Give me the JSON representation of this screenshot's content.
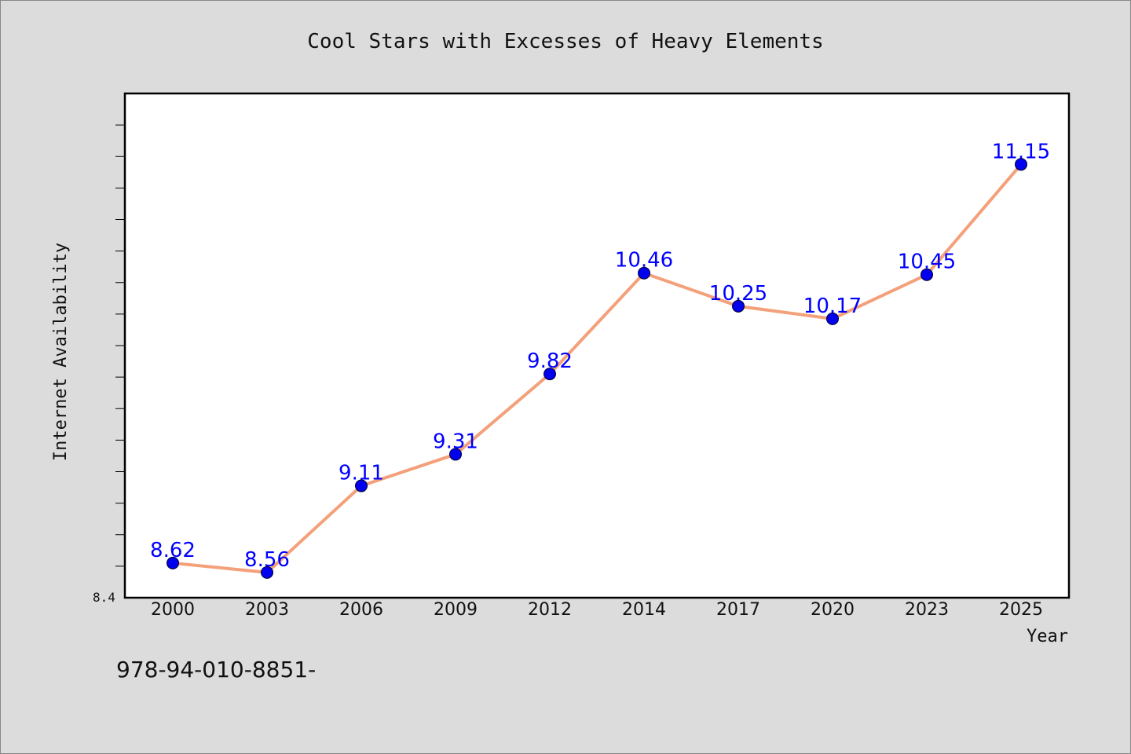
{
  "colors": {
    "background": "#dcdcdc",
    "plot_background": "#ffffff",
    "line": "#f4a07a",
    "marker": "#0000ee",
    "data_label": "#0000ff"
  },
  "footnote": "978-94-010-8851-",
  "chart_data": {
    "type": "line",
    "title": "Cool Stars with Excesses of Heavy Elements",
    "xlabel": "Year",
    "ylabel": "Internet Availability",
    "y_min_label": "8.4",
    "categories": [
      "2000",
      "2003",
      "2006",
      "2009",
      "2012",
      "2014",
      "2017",
      "2020",
      "2023",
      "2025"
    ],
    "series": [
      {
        "values": [
          8.62,
          8.56,
          9.11,
          9.31,
          9.82,
          10.46,
          10.25,
          10.17,
          10.45,
          11.15
        ],
        "labels": [
          "8.62",
          "8.56",
          "9.11",
          "9.31",
          "9.82",
          "10.46",
          "10.25",
          "10.17",
          "10.45",
          "11.15"
        ]
      }
    ],
    "ylim": [
      8.4,
      11.6
    ],
    "grid": false,
    "legend": "none"
  }
}
